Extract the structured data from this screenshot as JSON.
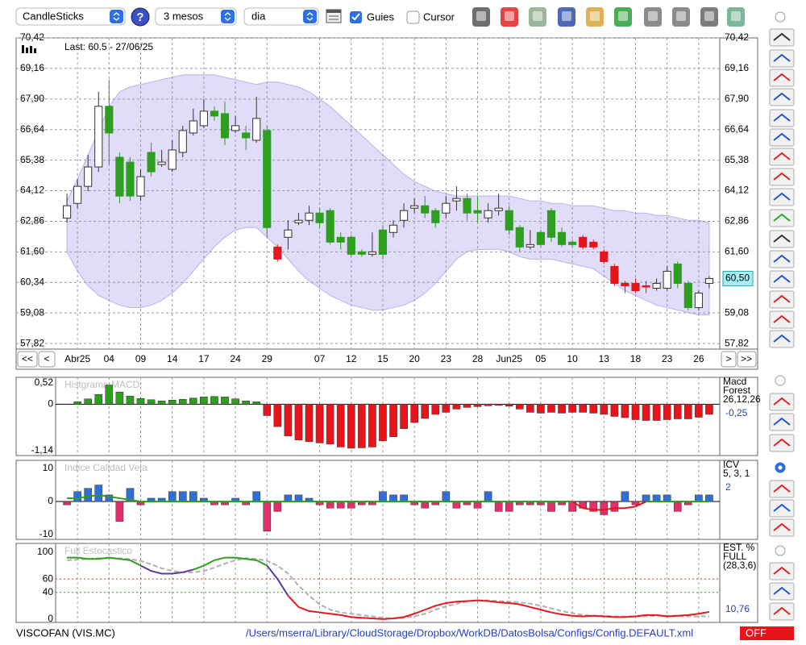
{
  "toolbar": {
    "chart_type": "CandleSticks",
    "period": "3 mesos",
    "interval": "dia",
    "guides": "Guies",
    "cursor": "Cursor"
  },
  "navigation": [
    "<<",
    "<",
    ">",
    ">>"
  ],
  "chart_data": [
    {
      "type": "candlestick",
      "subtitle": "Last: 60.5 - 27/06/25",
      "categories": [
        null,
        "Abr25",
        null,
        null,
        "04",
        null,
        null,
        "09",
        null,
        null,
        "14",
        null,
        null,
        "17",
        null,
        null,
        "24",
        null,
        null,
        "29",
        null,
        null,
        null,
        null,
        "07",
        null,
        null,
        "12",
        null,
        null,
        "15",
        null,
        null,
        "20",
        null,
        null,
        "23",
        null,
        null,
        "28",
        null,
        null,
        "Jun25",
        null,
        null,
        "05",
        null,
        null,
        "10",
        null,
        null,
        "13",
        null,
        null,
        "18",
        null,
        null,
        "23",
        null,
        null,
        "26",
        null
      ],
      "open": [
        62.99,
        63.6,
        64.3,
        65.1,
        67.6,
        65.5,
        65.3,
        63.9,
        65.7,
        65.2,
        65.0,
        65.7,
        66.5,
        66.8,
        67.4,
        67.3,
        66.6,
        66.5,
        66.2,
        66.6,
        61.3,
        62.2,
        62.8,
        62.9,
        63.2,
        63.3,
        62.2,
        62.2,
        61.6,
        61.5,
        62.5,
        62.4,
        62.9,
        63.4,
        63.5,
        63.3,
        63.2,
        63.7,
        63.8,
        63.3,
        63.0,
        63.3,
        63.3,
        62.6,
        61.8,
        62.4,
        63.3,
        62.4,
        62.0,
        62.2,
        62.0,
        61.6,
        61.0,
        60.3,
        60.0,
        60.2,
        60.1,
        60.1,
        61.1,
        60.3,
        59.3,
        60.3
      ],
      "high": [
        64.0,
        64.6,
        65.6,
        68.2,
        68.7,
        65.7,
        65.5,
        65.0,
        66.1,
        65.8,
        66.2,
        66.8,
        67.5,
        67.9,
        67.6,
        67.8,
        67.2,
        66.8,
        68.0,
        66.8,
        61.9,
        62.9,
        63.2,
        63.5,
        63.4,
        63.4,
        62.4,
        62.3,
        61.7,
        62.4,
        62.7,
        62.9,
        63.6,
        63.8,
        63.9,
        63.4,
        63.9,
        64.3,
        64.0,
        63.9,
        63.6,
        64.0,
        63.5,
        62.7,
        62.5,
        62.5,
        63.4,
        62.6,
        62.1,
        62.3,
        62.1,
        61.7,
        61.1,
        60.4,
        60.5,
        60.4,
        60.5,
        61.0,
        61.2,
        60.4,
        60.0,
        60.6
      ],
      "low": [
        62.8,
        63.4,
        64.1,
        64.9,
        65.2,
        63.6,
        63.7,
        63.7,
        64.7,
        65.1,
        64.9,
        65.5,
        66.4,
        66.7,
        67.0,
        66.0,
        66.5,
        65.8,
        66.1,
        62.2,
        61.2,
        61.7,
        62.7,
        62.7,
        62.6,
        61.9,
        61.7,
        61.4,
        61.4,
        61.4,
        61.3,
        62.2,
        62.6,
        63.2,
        63.0,
        62.6,
        63.0,
        63.3,
        62.9,
        62.8,
        62.8,
        63.1,
        62.3,
        61.6,
        61.7,
        61.8,
        62.0,
        61.8,
        61.8,
        61.7,
        61.7,
        61.1,
        60.2,
        59.9,
        59.9,
        59.9,
        60.0,
        60.0,
        60.1,
        59.2,
        59.2,
        60.1
      ],
      "close": [
        63.5,
        64.3,
        65.1,
        67.6,
        66.5,
        63.9,
        63.9,
        64.7,
        64.9,
        65.3,
        65.8,
        66.6,
        67.0,
        67.4,
        67.2,
        66.3,
        66.8,
        66.3,
        67.1,
        62.6,
        61.8,
        62.5,
        62.9,
        63.2,
        62.8,
        62.0,
        62.0,
        61.5,
        61.5,
        61.6,
        61.5,
        62.7,
        63.3,
        63.5,
        63.2,
        62.8,
        63.6,
        63.8,
        63.2,
        63.2,
        63.3,
        63.4,
        62.5,
        61.8,
        61.9,
        61.9,
        62.2,
        61.9,
        61.9,
        61.8,
        61.8,
        61.2,
        60.3,
        60.2,
        60.3,
        60.2,
        60.3,
        60.8,
        60.3,
        59.3,
        59.9,
        60.5
      ],
      "candle_colors": [
        "#ffffff",
        "#ffffff",
        "#ffffff",
        "#ffffff",
        "#2e9e1f",
        "#2e9e1f",
        "#2e9e1f",
        "#ffffff",
        "#2e9e1f",
        "#ffffff",
        "#ffffff",
        "#ffffff",
        "#ffffff",
        "#ffffff",
        "#2e9e1f",
        "#2e9e1f",
        "#ffffff",
        "#2e9e1f",
        "#ffffff",
        "#2e9e1f",
        "#e8141b",
        "#ffffff",
        "#ffffff",
        "#ffffff",
        "#2e9e1f",
        "#2e9e1f",
        "#2e9e1f",
        "#2e9e1f",
        "#2e9e1f",
        "#ffffff",
        "#2e9e1f",
        "#ffffff",
        "#ffffff",
        "#ffffff",
        "#2e9e1f",
        "#2e9e1f",
        "#ffffff",
        "#ffffff",
        "#2e9e1f",
        "#2e9e1f",
        "#ffffff",
        "#ffffff",
        "#2e9e1f",
        "#2e9e1f",
        "#ffffff",
        "#2e9e1f",
        "#2e9e1f",
        "#2e9e1f",
        "#2e9e1f",
        "#e8141b",
        "#e8141b",
        "#e8141b",
        "#e8141b",
        "#e8141b",
        "#e8141b",
        "#e8141b",
        "#ffffff",
        "#ffffff",
        "#2e9e1f",
        "#2e9e1f",
        "#ffffff",
        "#ffffff"
      ],
      "band": {
        "color": "#9b8ae6",
        "upper": [
          63.7,
          64.6,
          65.6,
          66.6,
          67.6,
          68.2,
          68.4,
          68.5,
          68.6,
          68.7,
          68.8,
          68.9,
          68.9,
          68.9,
          68.9,
          68.8,
          68.7,
          68.6,
          68.5,
          68.6,
          68.6,
          68.5,
          68.4,
          68.2,
          67.9,
          67.6,
          67.2,
          66.8,
          66.4,
          66.0,
          65.6,
          65.2,
          64.8,
          64.5,
          64.3,
          64.1,
          64.0,
          63.9,
          63.9,
          63.9,
          63.9,
          63.9,
          63.9,
          63.8,
          63.7,
          63.7,
          63.6,
          63.6,
          63.5,
          63.5,
          63.5,
          63.4,
          63.3,
          63.3,
          63.2,
          63.2,
          63.1,
          63.1,
          63.0,
          62.9,
          62.9,
          62.8
        ],
        "lower": [
          61.6,
          60.8,
          60.2,
          59.8,
          59.6,
          59.4,
          59.3,
          59.3,
          59.4,
          59.6,
          59.9,
          60.3,
          60.8,
          61.3,
          61.8,
          62.2,
          62.5,
          62.6,
          62.6,
          62.2,
          61.8,
          61.3,
          60.8,
          60.4,
          60.1,
          59.8,
          59.6,
          59.4,
          59.3,
          59.2,
          59.2,
          59.3,
          59.4,
          59.6,
          59.9,
          60.3,
          60.8,
          61.3,
          61.6,
          61.7,
          61.7,
          61.7,
          61.6,
          61.4,
          61.3,
          61.3,
          61.3,
          61.2,
          61.1,
          61.0,
          60.9,
          60.6,
          60.3,
          60.0,
          59.8,
          59.6,
          59.4,
          59.3,
          59.2,
          59.1,
          59.0,
          59.0
        ]
      },
      "ylim": [
        57.69,
        70.42
      ],
      "yticks": [
        {
          "value": 57.82,
          "label": "57,82"
        },
        {
          "value": 59.08,
          "label": "59,08"
        },
        {
          "value": 60.34,
          "label": "60,34"
        },
        {
          "value": 61.6,
          "label": "61,60"
        },
        {
          "value": 62.86,
          "label": "62,86"
        },
        {
          "value": 64.12,
          "label": "64,12"
        },
        {
          "value": 65.38,
          "label": "65,38"
        },
        {
          "value": 66.64,
          "label": "66,64"
        },
        {
          "value": 67.9,
          "label": "67,90"
        },
        {
          "value": 69.16,
          "label": "69,16"
        },
        {
          "value": 70.42,
          "label": "70,42"
        }
      ],
      "grid": true,
      "last_price": {
        "value": 60.5,
        "label": "60,50"
      }
    },
    {
      "type": "bar",
      "title": "Histgrama MACD",
      "side_labels": [
        "Macd",
        "Forest",
        "26,12,26"
      ],
      "last_label": {
        "value": -0.25,
        "label": "-0,25"
      },
      "colors": {
        "positive": "#2e9e1f",
        "negative": "#e8141b"
      },
      "values": [
        null,
        0.06,
        0.13,
        0.24,
        0.47,
        0.3,
        0.2,
        0.14,
        0.11,
        0.08,
        0.1,
        0.12,
        0.15,
        0.18,
        0.19,
        0.18,
        0.13,
        0.08,
        0.06,
        -0.28,
        -0.55,
        -0.78,
        -0.88,
        -0.92,
        -0.95,
        -0.98,
        -1.05,
        -1.08,
        -1.07,
        -1.05,
        -0.9,
        -0.8,
        -0.6,
        -0.45,
        -0.35,
        -0.25,
        -0.2,
        -0.12,
        -0.08,
        -0.06,
        -0.04,
        -0.03,
        -0.05,
        -0.12,
        -0.2,
        -0.22,
        -0.2,
        -0.22,
        -0.2,
        -0.2,
        -0.22,
        -0.25,
        -0.3,
        -0.33,
        -0.38,
        -0.4,
        -0.4,
        -0.38,
        -0.36,
        -0.36,
        -0.32,
        -0.25
      ],
      "ylim": [
        -1.14,
        0.52
      ],
      "yticks": [
        {
          "value": 0.52,
          "label": "0,52"
        },
        0,
        {
          "value": -1.14,
          "label": "-1,14"
        }
      ]
    },
    {
      "type": "bar",
      "title": "Indice Calidad Vela",
      "side_labels": [
        "ICV",
        "5, 3, 1"
      ],
      "last_label": {
        "value": 2,
        "label": "2"
      },
      "colors": {
        "positive": "#2f6fd6",
        "negative": "#e0306a"
      },
      "values": [
        -1,
        3,
        4,
        5,
        2,
        -6,
        4,
        -1,
        1,
        1,
        3,
        3,
        3,
        1,
        -1,
        -1,
        1,
        -1,
        3,
        -9,
        -3,
        2,
        2,
        1,
        -1,
        -2,
        -2,
        -2,
        -1,
        -1,
        3,
        2,
        2,
        -1,
        -2,
        -1,
        3,
        -2,
        -1,
        -2,
        3,
        -3,
        -3,
        -1,
        -1,
        -1,
        -3,
        -1,
        -3,
        -2,
        -3,
        -4,
        -3,
        3,
        -1,
        2,
        2,
        2,
        -3,
        -1,
        2,
        2
      ],
      "line": {
        "color": "#2e9e1f",
        "negative_color": "#e8141b",
        "values": [
          1,
          1,
          1.5,
          2,
          1.5,
          1,
          0.5,
          0,
          0,
          0,
          0,
          0,
          0,
          0,
          0,
          0,
          0,
          0,
          0,
          0,
          0,
          0,
          0,
          0,
          0,
          0,
          0,
          0,
          0,
          0,
          0,
          0,
          0,
          0,
          0,
          0,
          0,
          0,
          0,
          0,
          0,
          0,
          0,
          0,
          0,
          0,
          0,
          0,
          0,
          -2,
          -2.5,
          -2.5,
          -2,
          -2,
          -1.5,
          0,
          0,
          0,
          0,
          0,
          0,
          0
        ]
      },
      "ylim": [
        -11.2,
        12.2
      ],
      "yticks": [
        10,
        0,
        -10
      ]
    },
    {
      "type": "line",
      "title": "Full Estocastico",
      "side_labels": [
        "EST. %",
        "FULL",
        "(28,3,6)"
      ],
      "last_label": {
        "value": 10.76,
        "label": "10,76"
      },
      "series": [
        {
          "color": "#b0b0b0",
          "dash": true,
          "values": [
            88,
            89,
            90,
            91,
            91,
            91,
            90,
            87,
            82,
            76,
            72,
            70,
            70,
            72,
            77,
            83,
            88,
            91,
            90,
            87,
            80,
            68,
            50,
            35,
            22,
            14,
            10,
            8,
            6,
            4,
            2,
            1,
            2,
            4,
            8,
            14,
            19,
            23,
            26,
            28,
            28,
            27,
            26,
            25,
            23,
            20,
            16,
            12,
            9,
            6,
            5,
            5,
            4,
            4,
            4,
            4,
            5,
            5,
            5,
            4,
            4,
            4
          ]
        },
        {
          "color": "#2e9e1f",
          "values": [
            92,
            92,
            90,
            90,
            92,
            90,
            88,
            80,
            null,
            null,
            null,
            null,
            74,
            80,
            88,
            92,
            92,
            90,
            88,
            80,
            null,
            null,
            null,
            null,
            null,
            null,
            null,
            null,
            null,
            null,
            null,
            null,
            null,
            null,
            null,
            null,
            null,
            null,
            null,
            null,
            null,
            null,
            null,
            null,
            null,
            null,
            null,
            null,
            null,
            null,
            null,
            null,
            null,
            null,
            null,
            null,
            null,
            null,
            null,
            null,
            null,
            null
          ]
        },
        {
          "color": "#5a3aa8",
          "values": [
            null,
            null,
            null,
            null,
            null,
            null,
            null,
            80,
            72,
            68,
            68,
            70,
            74,
            null,
            null,
            null,
            null,
            null,
            null,
            80,
            60,
            35,
            null,
            null,
            null,
            null,
            null,
            null,
            null,
            null,
            null,
            null,
            null,
            null,
            null,
            null,
            null,
            null,
            null,
            null,
            null,
            null,
            null,
            null,
            null,
            null,
            null,
            null,
            null,
            null,
            null,
            null,
            null,
            null,
            null,
            null,
            null,
            null,
            null,
            null,
            null,
            null
          ]
        },
        {
          "color": "#e31a1c",
          "values": [
            null,
            null,
            null,
            null,
            null,
            null,
            null,
            null,
            null,
            null,
            null,
            null,
            null,
            null,
            null,
            null,
            null,
            null,
            null,
            null,
            null,
            35,
            18,
            12,
            10,
            8,
            6,
            3,
            2,
            1,
            0,
            1,
            3,
            8,
            14,
            20,
            24,
            26,
            27,
            28,
            27,
            25,
            24,
            22,
            18,
            14,
            10,
            7,
            5,
            4,
            5,
            4,
            3,
            3,
            4,
            6,
            6,
            4,
            5,
            6,
            8,
            10.76
          ]
        }
      ],
      "guides": [
        {
          "value": 60,
          "color": "#c0392b"
        },
        {
          "value": 40,
          "color": "#2e9e1f"
        }
      ],
      "ylim": [
        -5,
        112
      ],
      "yticks": [
        100,
        60,
        40,
        0
      ]
    }
  ],
  "status_bar": {
    "symbol": "VISCOFAN (VIS.MC)",
    "config_path": "/Users/mserra/Library/CloudStorage/Dropbox/WorkDB/DatosBolsa/Configs/Config.DEFAULT.xml",
    "state": "OFF"
  }
}
